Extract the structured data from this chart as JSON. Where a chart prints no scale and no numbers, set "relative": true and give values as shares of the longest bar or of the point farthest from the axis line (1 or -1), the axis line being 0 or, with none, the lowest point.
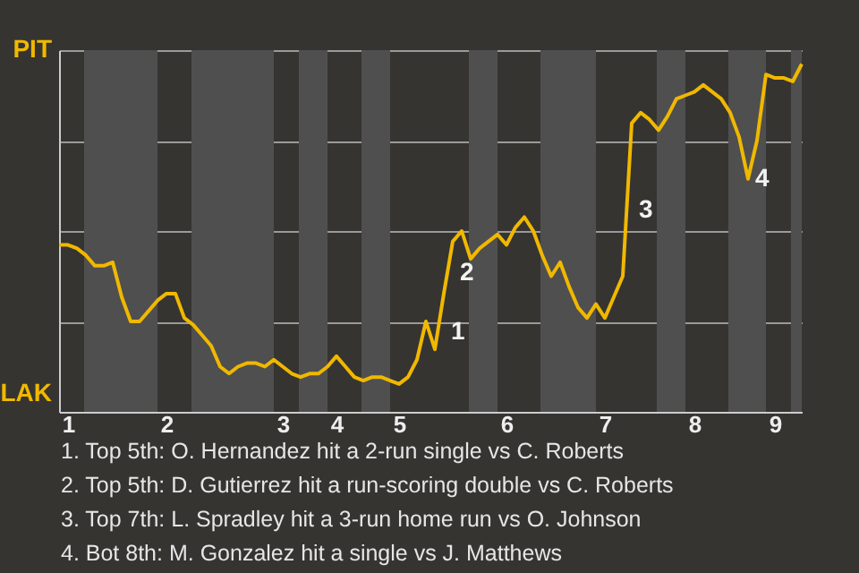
{
  "chart_data": {
    "type": "line",
    "relative": true,
    "categories": [
      null,
      "1",
      null,
      null,
      null,
      null,
      null,
      null,
      null,
      null,
      null,
      null,
      "2",
      null,
      null,
      null,
      null,
      null,
      null,
      null,
      null,
      null,
      null,
      null,
      null,
      "3",
      null,
      null,
      null,
      null,
      null,
      "4",
      null,
      null,
      null,
      null,
      null,
      null,
      "5",
      null,
      null,
      null,
      null,
      null,
      null,
      null,
      null,
      null,
      null,
      null,
      "6",
      null,
      null,
      null,
      null,
      null,
      null,
      null,
      null,
      null,
      null,
      "7",
      null,
      null,
      null,
      null,
      null,
      null,
      null,
      null,
      null,
      "8",
      null,
      null,
      null,
      null,
      null,
      null,
      null,
      null,
      "9",
      null,
      null,
      null
    ],
    "series": [
      {
        "color": "#f0b800",
        "values": [
          0.48,
          0.48,
          0.47,
          0.45,
          0.42,
          0.42,
          0.43,
          0.33,
          0.26,
          0.26,
          0.29,
          0.32,
          0.34,
          0.34,
          0.27,
          0.25,
          0.22,
          0.19,
          0.13,
          0.11,
          0.13,
          0.14,
          0.14,
          0.13,
          0.15,
          0.13,
          0.11,
          0.1,
          0.11,
          0.11,
          0.13,
          0.16,
          0.13,
          0.1,
          0.09,
          0.1,
          0.1,
          0.09,
          0.08,
          0.1,
          0.15,
          0.26,
          0.18,
          0.34,
          0.49,
          0.52,
          0.44,
          0.47,
          0.49,
          0.51,
          0.48,
          0.53,
          0.56,
          0.52,
          0.45,
          0.39,
          0.43,
          0.36,
          0.3,
          0.27,
          0.31,
          0.27,
          0.33,
          0.39,
          0.83,
          0.86,
          0.84,
          0.81,
          0.85,
          0.9,
          0.91,
          0.92,
          0.94,
          0.92,
          0.9,
          0.86,
          0.79,
          0.67,
          0.78,
          0.97,
          0.96,
          0.96,
          0.95,
          1
        ]
      }
    ],
    "grid": "y",
    "marker": "none",
    "line_style": "solid",
    "annotations": [
      "PIT",
      "LAK",
      "1",
      "2",
      "3",
      "4",
      "1. Top 5th: O. Hernandez hit a 2-run single vs C. Roberts",
      "2. Top 5th: D. Gutierrez hit a run-scoring double vs C. Roberts",
      "3. Top 7th: L. Spradley hit a 3-run home run vs O. Johnson",
      "4. Bot 8th: M. Gonzalez hit a single vs J. Matthews"
    ]
  }
}
